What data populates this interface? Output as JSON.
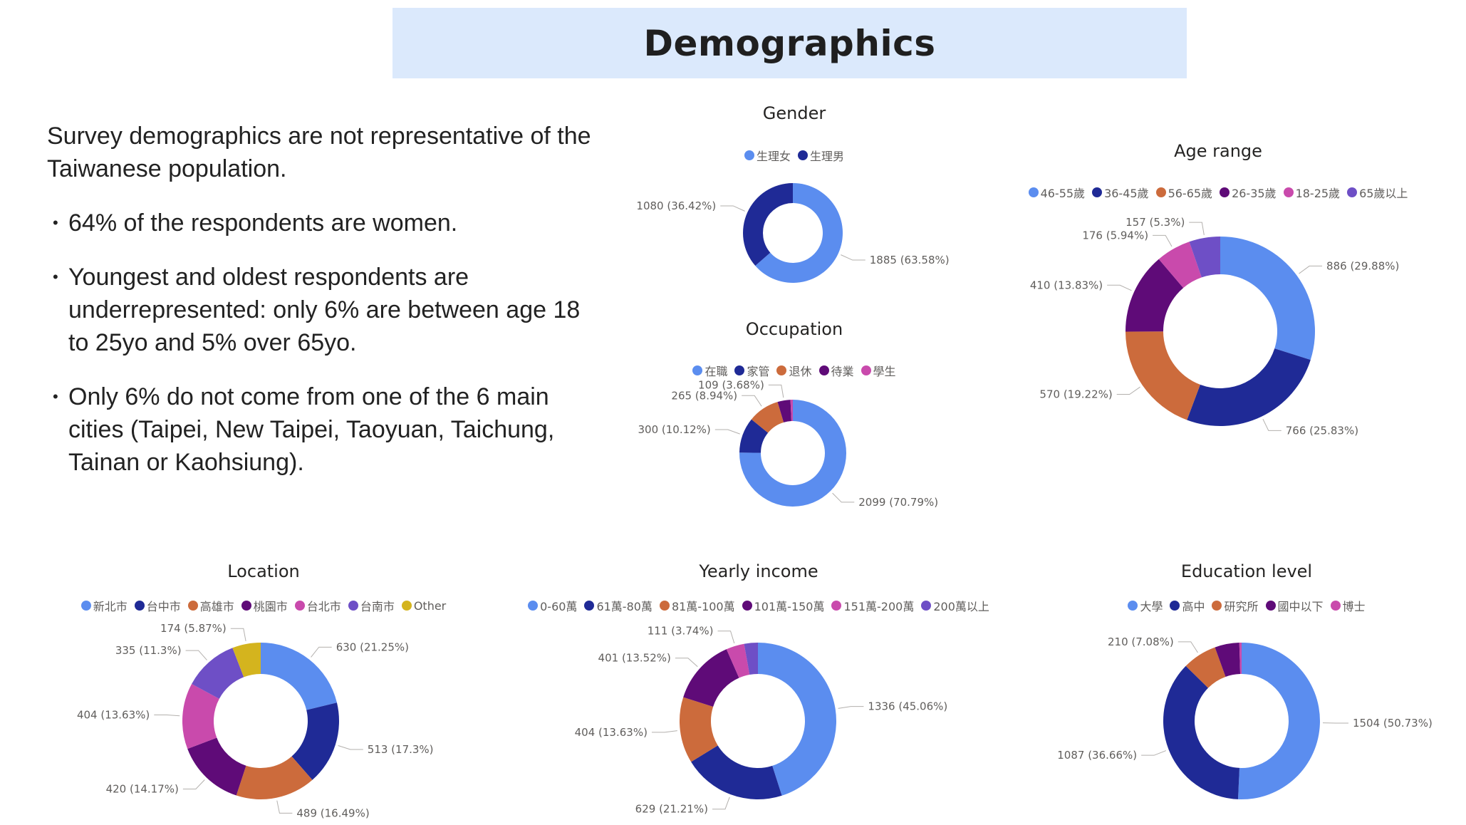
{
  "header": {
    "title": "Demographics"
  },
  "summary": {
    "lead": "Survey demographics are not representative of the Taiwanese population.",
    "bullets": [
      "64% of the respondents are women.",
      "Youngest and oldest respondents are underrepresented: only 6% are between age 18 to 25yo and 5% over 65yo.",
      "Only 6% do not come from one of the 6 main cities (Taipei, New Taipei, Taoyuan, Taichung, Tainan or Kaohsiung)."
    ]
  },
  "chart_data": [
    {
      "id": "gender",
      "type": "pie",
      "title": "Gender",
      "categories": [
        "生理女",
        "生理男"
      ],
      "values": [
        1885,
        1080
      ],
      "labels": [
        "1885 (63.58%)",
        "1080 (36.42%)"
      ],
      "colors": [
        "#5b8def",
        "#1f2a96"
      ]
    },
    {
      "id": "occupation",
      "type": "pie",
      "title": "Occupation",
      "categories": [
        "在職",
        "家管",
        "退休",
        "待業",
        "學生"
      ],
      "values": [
        2099,
        300,
        265,
        109,
        20
      ],
      "labels": [
        "2099 (70.79%)",
        "300 (10.12%)",
        "265 (8.94%)",
        "109 (3.68%)",
        ""
      ],
      "colors": [
        "#5b8def",
        "#1f2a96",
        "#cc6b3c",
        "#5f0b78",
        "#c94aac"
      ]
    },
    {
      "id": "age",
      "type": "pie",
      "title": "Age range",
      "categories": [
        "46-55歲",
        "36-45歲",
        "56-65歲",
        "26-35歲",
        "18-25歲",
        "65歲以上"
      ],
      "values": [
        886,
        766,
        570,
        410,
        176,
        157
      ],
      "labels": [
        "886 (29.88%)",
        "766 (25.83%)",
        "570 (19.22%)",
        "410 (13.83%)",
        "176 (5.94%)",
        "157 (5.3%)"
      ],
      "colors": [
        "#5b8def",
        "#1f2a96",
        "#cc6b3c",
        "#5f0b78",
        "#c94aac",
        "#6e4fc6"
      ]
    },
    {
      "id": "location",
      "type": "pie",
      "title": "Location",
      "categories": [
        "新北市",
        "台中市",
        "高雄市",
        "桃園市",
        "台北市",
        "台南市",
        "Other"
      ],
      "values": [
        630,
        513,
        489,
        420,
        404,
        335,
        174
      ],
      "labels": [
        "630 (21.25%)",
        "513 (17.3%)",
        "489 (16.49%)",
        "420 (14.17%)",
        "404 (13.63%)",
        "335 (11.3%)",
        "174 (5.87%)"
      ],
      "colors": [
        "#5b8def",
        "#1f2a96",
        "#cc6b3c",
        "#5f0b78",
        "#c94aac",
        "#6e4fc6",
        "#d4b41e"
      ]
    },
    {
      "id": "income",
      "type": "pie",
      "title": "Yearly income",
      "categories": [
        "0-60萬",
        "61萬-80萬",
        "81萬-100萬",
        "101萬-150萬",
        "151萬-200萬",
        "200萬以上"
      ],
      "values": [
        1336,
        629,
        404,
        401,
        111,
        84
      ],
      "labels": [
        "1336 (45.06%)",
        "629 (21.21%)",
        "404 (13.63%)",
        "401 (13.52%)",
        "111 (3.74%)",
        ""
      ],
      "colors": [
        "#5b8def",
        "#1f2a96",
        "#cc6b3c",
        "#5f0b78",
        "#c94aac",
        "#6e4fc6"
      ]
    },
    {
      "id": "education",
      "type": "pie",
      "title": "Education level",
      "categories": [
        "大學",
        "高中",
        "研究所",
        "國中以下",
        "博士"
      ],
      "values": [
        1504,
        1087,
        210,
        150,
        14
      ],
      "labels": [
        "1504 (50.73%)",
        "1087 (36.66%)",
        "210 (7.08%)",
        "",
        ""
      ],
      "colors": [
        "#5b8def",
        "#1f2a96",
        "#cc6b3c",
        "#5f0b78",
        "#c94aac"
      ]
    }
  ]
}
